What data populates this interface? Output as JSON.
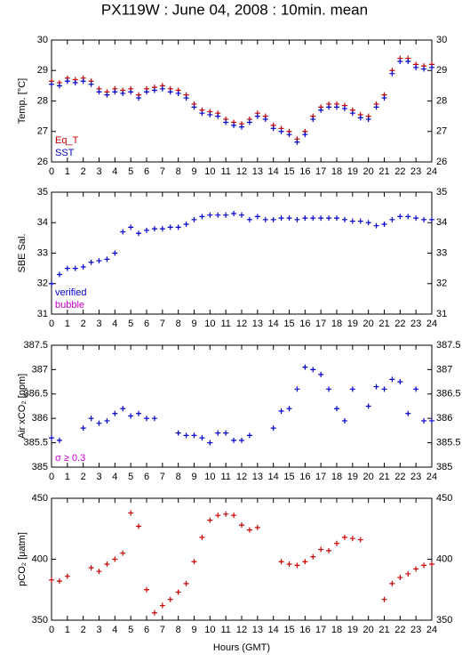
{
  "chart_data": [
    {
      "type": "scatter",
      "title": "PX119W : June 04, 2008 : 10min. mean",
      "y_label": "Temp. [°C]",
      "legend": "lower left",
      "x": [
        0,
        0.5,
        1,
        1.5,
        2,
        2.5,
        3,
        3.5,
        4,
        4.5,
        5,
        5.5,
        6,
        6.5,
        7,
        7.5,
        8,
        8.5,
        9,
        9.5,
        10,
        10.5,
        11,
        11.5,
        12,
        12.5,
        13,
        13.5,
        14,
        14.5,
        15,
        15.5,
        16,
        16.5,
        17,
        17.5,
        18,
        18.5,
        19,
        19.5,
        20,
        20.5,
        21,
        21.5,
        22,
        22.5,
        23,
        23.5,
        24
      ],
      "xlim": [
        0,
        24
      ],
      "xticks": [
        0,
        1,
        2,
        3,
        4,
        5,
        6,
        7,
        8,
        9,
        10,
        11,
        12,
        13,
        14,
        15,
        16,
        17,
        18,
        19,
        20,
        21,
        22,
        23,
        24
      ],
      "ylim": [
        26,
        30
      ],
      "yticks": [
        26,
        27,
        28,
        29,
        30
      ],
      "series": [
        {
          "name": "Eq_T",
          "color": "#cc0000",
          "values": [
            28.65,
            28.6,
            28.75,
            28.7,
            28.75,
            28.65,
            28.4,
            28.3,
            28.4,
            28.35,
            28.4,
            28.2,
            28.4,
            28.45,
            28.5,
            28.4,
            28.35,
            28.2,
            27.9,
            27.7,
            27.65,
            27.6,
            27.4,
            27.3,
            27.25,
            27.4,
            27.6,
            27.5,
            27.2,
            27.1,
            27.0,
            26.75,
            27.0,
            27.5,
            27.8,
            27.9,
            27.9,
            27.85,
            27.7,
            27.55,
            27.5,
            27.9,
            28.2,
            29.0,
            29.4,
            29.4,
            29.2,
            29.15,
            29.2
          ]
        },
        {
          "name": "SST",
          "color": "#0000cc",
          "values": [
            28.55,
            28.5,
            28.65,
            28.6,
            28.65,
            28.55,
            28.3,
            28.2,
            28.3,
            28.25,
            28.3,
            28.1,
            28.3,
            28.35,
            28.4,
            28.3,
            28.25,
            28.1,
            27.8,
            27.6,
            27.55,
            27.5,
            27.3,
            27.2,
            27.15,
            27.3,
            27.5,
            27.4,
            27.1,
            27.0,
            26.9,
            26.65,
            26.9,
            27.4,
            27.7,
            27.8,
            27.8,
            27.75,
            27.6,
            27.45,
            27.4,
            27.8,
            28.1,
            28.9,
            29.3,
            29.3,
            29.1,
            29.05,
            29.1
          ]
        }
      ]
    },
    {
      "type": "scatter",
      "y_label": "SBE Sal.",
      "legend": "lower left",
      "x": [
        0,
        0.5,
        1,
        1.5,
        2,
        2.5,
        3,
        3.5,
        4,
        4.5,
        5,
        5.5,
        6,
        6.5,
        7,
        7.5,
        8,
        8.5,
        9,
        9.5,
        10,
        10.5,
        11,
        11.5,
        12,
        12.5,
        13,
        13.5,
        14,
        14.5,
        15,
        15.5,
        16,
        16.5,
        17,
        17.5,
        18,
        18.5,
        19,
        19.5,
        20,
        20.5,
        21,
        21.5,
        22,
        22.5,
        23,
        23.5,
        24
      ],
      "xlim": [
        0,
        24
      ],
      "xticks": [
        0,
        1,
        2,
        3,
        4,
        5,
        6,
        7,
        8,
        9,
        10,
        11,
        12,
        13,
        14,
        15,
        16,
        17,
        18,
        19,
        20,
        21,
        22,
        23,
        24
      ],
      "ylim": [
        31,
        35
      ],
      "yticks": [
        31,
        32,
        33,
        34,
        35
      ],
      "series": [
        {
          "name": "verified",
          "color": "#0000cc",
          "values": [
            32.0,
            32.3,
            32.5,
            32.5,
            32.55,
            32.7,
            32.75,
            32.8,
            33.0,
            33.7,
            33.85,
            33.65,
            33.75,
            33.8,
            33.8,
            33.85,
            33.85,
            33.95,
            34.1,
            34.2,
            34.25,
            34.25,
            34.25,
            34.3,
            34.25,
            34.1,
            34.2,
            34.1,
            34.1,
            34.15,
            34.15,
            34.1,
            34.15,
            34.15,
            34.15,
            34.15,
            34.15,
            34.1,
            34.05,
            34.05,
            34.0,
            33.9,
            33.95,
            34.1,
            34.2,
            34.2,
            34.15,
            34.1,
            34.1
          ]
        },
        {
          "name": "bubble",
          "color": "#cc00cc",
          "values": [
            null,
            null,
            null,
            null,
            null,
            null,
            null,
            null,
            null,
            null,
            null,
            null,
            null,
            null,
            null,
            null,
            null,
            null,
            null,
            null,
            null,
            null,
            null,
            null,
            null,
            null,
            null,
            null,
            null,
            null,
            null,
            null,
            null,
            null,
            null,
            null,
            null,
            null,
            null,
            null,
            null,
            null,
            null,
            null,
            null,
            null,
            null,
            null,
            null
          ]
        }
      ]
    },
    {
      "type": "scatter",
      "y_label": "Air xCO₂ [ppm]",
      "legend": "lower left",
      "x": [
        0,
        0.5,
        1,
        1.5,
        2,
        2.5,
        3,
        3.5,
        4,
        4.5,
        5,
        5.5,
        6,
        6.5,
        7,
        7.5,
        8,
        8.5,
        9,
        9.5,
        10,
        10.5,
        11,
        11.5,
        12,
        12.5,
        13,
        13.5,
        14,
        14.5,
        15,
        15.5,
        16,
        16.5,
        17,
        17.5,
        18,
        18.5,
        19,
        19.5,
        20,
        20.5,
        21,
        21.5,
        22,
        22.5,
        23,
        23.5,
        24
      ],
      "xlim": [
        0,
        24
      ],
      "xticks": [
        0,
        1,
        2,
        3,
        4,
        5,
        6,
        7,
        8,
        9,
        10,
        11,
        12,
        13,
        14,
        15,
        16,
        17,
        18,
        19,
        20,
        21,
        22,
        23,
        24
      ],
      "ylim": [
        385,
        387.5
      ],
      "yticks": [
        385,
        385.5,
        386,
        386.5,
        387,
        387.5
      ],
      "series": [
        {
          "name": "Air xCO₂",
          "color": "#0000cc",
          "values": [
            385.6,
            385.55,
            null,
            null,
            385.8,
            386.0,
            385.9,
            385.95,
            386.1,
            386.2,
            386.05,
            386.1,
            386.0,
            386.0,
            null,
            null,
            385.7,
            385.65,
            385.65,
            385.6,
            385.5,
            385.7,
            385.7,
            385.55,
            385.55,
            385.65,
            null,
            null,
            385.8,
            386.15,
            386.2,
            386.6,
            387.05,
            387.0,
            386.9,
            386.6,
            386.2,
            385.95,
            386.6,
            null,
            386.25,
            386.65,
            386.6,
            386.8,
            386.75,
            386.1,
            386.6,
            385.95,
            385.95
          ]
        },
        {
          "name": "σ ≥ 0.3",
          "color": "#cc00cc",
          "values": [
            null,
            null,
            null,
            null,
            null,
            null,
            null,
            null,
            null,
            null,
            null,
            null,
            null,
            null,
            null,
            null,
            null,
            null,
            null,
            null,
            null,
            null,
            null,
            null,
            null,
            null,
            null,
            null,
            null,
            null,
            null,
            null,
            null,
            null,
            null,
            null,
            null,
            null,
            null,
            null,
            null,
            null,
            null,
            null,
            null,
            null,
            null,
            null,
            null
          ]
        }
      ]
    },
    {
      "type": "scatter",
      "y_label": "pCO₂ [µatm]",
      "x_label": "Hours (GMT)",
      "x": [
        0,
        0.5,
        1,
        1.5,
        2,
        2.5,
        3,
        3.5,
        4,
        4.5,
        5,
        5.5,
        6,
        6.5,
        7,
        7.5,
        8,
        8.5,
        9,
        9.5,
        10,
        10.5,
        11,
        11.5,
        12,
        12.5,
        13,
        13.5,
        14,
        14.5,
        15,
        15.5,
        16,
        16.5,
        17,
        17.5,
        18,
        18.5,
        19,
        19.5,
        20,
        20.5,
        21,
        21.5,
        22,
        22.5,
        23,
        23.5,
        24
      ],
      "xlim": [
        0,
        24
      ],
      "xticks": [
        0,
        1,
        2,
        3,
        4,
        5,
        6,
        7,
        8,
        9,
        10,
        11,
        12,
        13,
        14,
        15,
        16,
        17,
        18,
        19,
        20,
        21,
        22,
        23,
        24
      ],
      "ylim": [
        350,
        450
      ],
      "yticks": [
        350,
        400,
        450
      ],
      "series": [
        {
          "name": "pCO₂",
          "color": "#cc0000",
          "values": [
            383,
            382,
            386,
            null,
            null,
            393,
            390,
            396,
            400,
            405,
            438,
            427,
            375,
            356,
            362,
            367,
            373,
            380,
            398,
            418,
            432,
            436,
            437,
            436,
            428,
            424,
            426,
            null,
            null,
            398,
            396,
            395,
            398,
            402,
            408,
            407,
            413,
            418,
            417,
            416,
            null,
            null,
            367,
            380,
            385,
            388,
            392,
            395,
            396
          ]
        }
      ]
    }
  ]
}
